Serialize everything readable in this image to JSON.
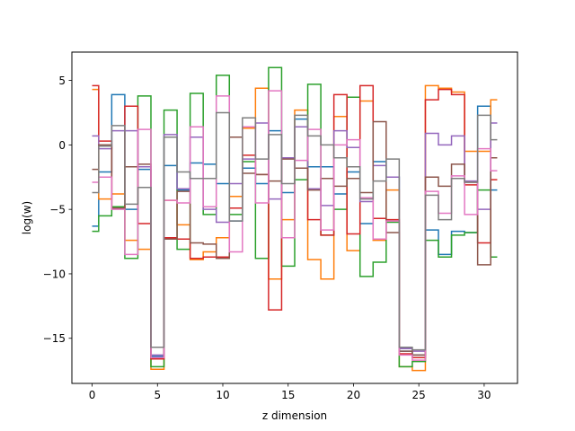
{
  "chart_data": {
    "type": "line",
    "drawstyle": "steps-mid",
    "title": "",
    "xlabel": "z dimension",
    "ylabel": "log(w)",
    "xlim": [
      -1.55,
      32.55
    ],
    "ylim": [
      -18.5,
      7.2
    ],
    "xticks": [
      0,
      5,
      10,
      15,
      20,
      25,
      30
    ],
    "yticks": [
      -15,
      -10,
      -5,
      0,
      5
    ],
    "ytick_labels": [
      "−15",
      "−10",
      "−5",
      "0",
      "5"
    ],
    "grid": false,
    "legend": "none",
    "x": [
      0,
      1,
      2,
      3,
      4,
      5,
      6,
      7,
      8,
      9,
      10,
      11,
      12,
      13,
      14,
      15,
      16,
      17,
      18,
      19,
      20,
      21,
      22,
      23,
      24,
      25,
      26,
      27,
      28,
      29,
      30,
      31
    ],
    "series": [
      {
        "color": "#1f77b4",
        "values": [
          -6.3,
          -2.1,
          3.9,
          -5.0,
          -1.9,
          -16.4,
          -1.6,
          -3.5,
          -1.4,
          -1.5,
          -3.0,
          -5.9,
          -1.8,
          -3.0,
          1.1,
          -3.7,
          2.0,
          -1.7,
          -1.7,
          -3.8,
          -2.1,
          -6.1,
          -1.3,
          -2.5,
          -16.0,
          -16.3,
          -6.6,
          -8.5,
          -6.7,
          -6.8,
          3.0,
          -3.5
        ]
      },
      {
        "color": "#ff7f0e",
        "values": [
          4.3,
          -4.2,
          -3.8,
          -7.4,
          -8.1,
          -17.4,
          -4.3,
          -6.2,
          -8.9,
          -8.3,
          -7.2,
          -4.0,
          1.3,
          4.4,
          -10.4,
          -5.8,
          2.7,
          -8.9,
          -10.4,
          2.2,
          -8.2,
          3.4,
          -7.4,
          -3.5,
          -17.2,
          -17.5,
          4.6,
          4.4,
          4.1,
          -0.5,
          -0.5,
          3.5
        ]
      },
      {
        "color": "#2ca02c",
        "values": [
          -6.7,
          -5.5,
          -4.8,
          -8.8,
          3.8,
          -17.2,
          2.7,
          -8.1,
          4.0,
          -5.4,
          5.4,
          -5.4,
          -1.3,
          -8.8,
          6.0,
          -9.4,
          -2.7,
          4.7,
          -7.0,
          -5.0,
          3.7,
          -10.2,
          -9.1,
          -6.0,
          -17.2,
          -16.8,
          -7.4,
          -8.7,
          -7.0,
          -6.8,
          -3.5,
          -8.7
        ]
      },
      {
        "color": "#d62728",
        "values": [
          4.6,
          0.3,
          -4.9,
          3.0,
          -6.1,
          -16.6,
          -7.2,
          -7.3,
          -8.8,
          -8.7,
          -8.7,
          -4.9,
          -0.8,
          -2.3,
          -12.8,
          -1.0,
          -1.8,
          -5.8,
          -7.0,
          3.9,
          -6.9,
          4.6,
          -5.7,
          -5.8,
          -16.2,
          -16.5,
          3.5,
          4.3,
          3.9,
          -3.1,
          -7.6,
          -2.7
        ]
      },
      {
        "color": "#9467bd",
        "values": [
          0.7,
          -0.3,
          1.1,
          1.1,
          -1.7,
          -16.3,
          0.8,
          -3.4,
          0.6,
          -5.0,
          -6.0,
          -3.0,
          -1.1,
          1.7,
          -4.2,
          -1.0,
          1.4,
          -3.4,
          -4.7,
          1.1,
          -0.2,
          -4.4,
          -1.6,
          -2.5,
          -15.8,
          -16.0,
          0.9,
          0.0,
          0.7,
          -2.8,
          -5.0,
          1.7
        ]
      },
      {
        "color": "#8c564b",
        "values": [
          -1.9,
          0.0,
          -4.9,
          -1.7,
          -1.5,
          -16.5,
          -7.3,
          -3.6,
          -7.6,
          -7.7,
          -8.8,
          0.6,
          -2.2,
          -2.3,
          -2.8,
          -1.1,
          -1.8,
          -3.5,
          -2.6,
          -3.2,
          -2.6,
          -3.7,
          1.8,
          -6.8,
          -16.0,
          -16.3,
          -2.5,
          -3.2,
          -1.5,
          -2.9,
          -9.3,
          -1.0
        ]
      },
      {
        "color": "#e377c2",
        "values": [
          -2.9,
          -2.5,
          -5.0,
          -8.5,
          1.2,
          -16.5,
          -4.3,
          -4.5,
          1.4,
          -4.8,
          3.8,
          -8.3,
          1.4,
          -4.5,
          4.2,
          -7.2,
          -1.2,
          1.2,
          -6.6,
          0.0,
          0.4,
          -4.1,
          -7.3,
          -5.9,
          -16.3,
          -16.7,
          -3.6,
          -5.3,
          -2.4,
          -5.4,
          -0.3,
          -2.0
        ]
      },
      {
        "color": "#7f7f7f",
        "values": [
          -3.7,
          -0.1,
          1.5,
          -4.6,
          -3.3,
          -15.7,
          0.6,
          -2.1,
          -2.6,
          -2.6,
          2.5,
          -5.9,
          2.1,
          -1.1,
          0.8,
          -3.0,
          2.3,
          0.7,
          0.0,
          -1.0,
          -1.7,
          -4.2,
          -2.8,
          -1.1,
          -15.7,
          -15.9,
          -3.9,
          -5.8,
          -2.6,
          -2.9,
          2.3,
          0.4
        ]
      }
    ]
  }
}
